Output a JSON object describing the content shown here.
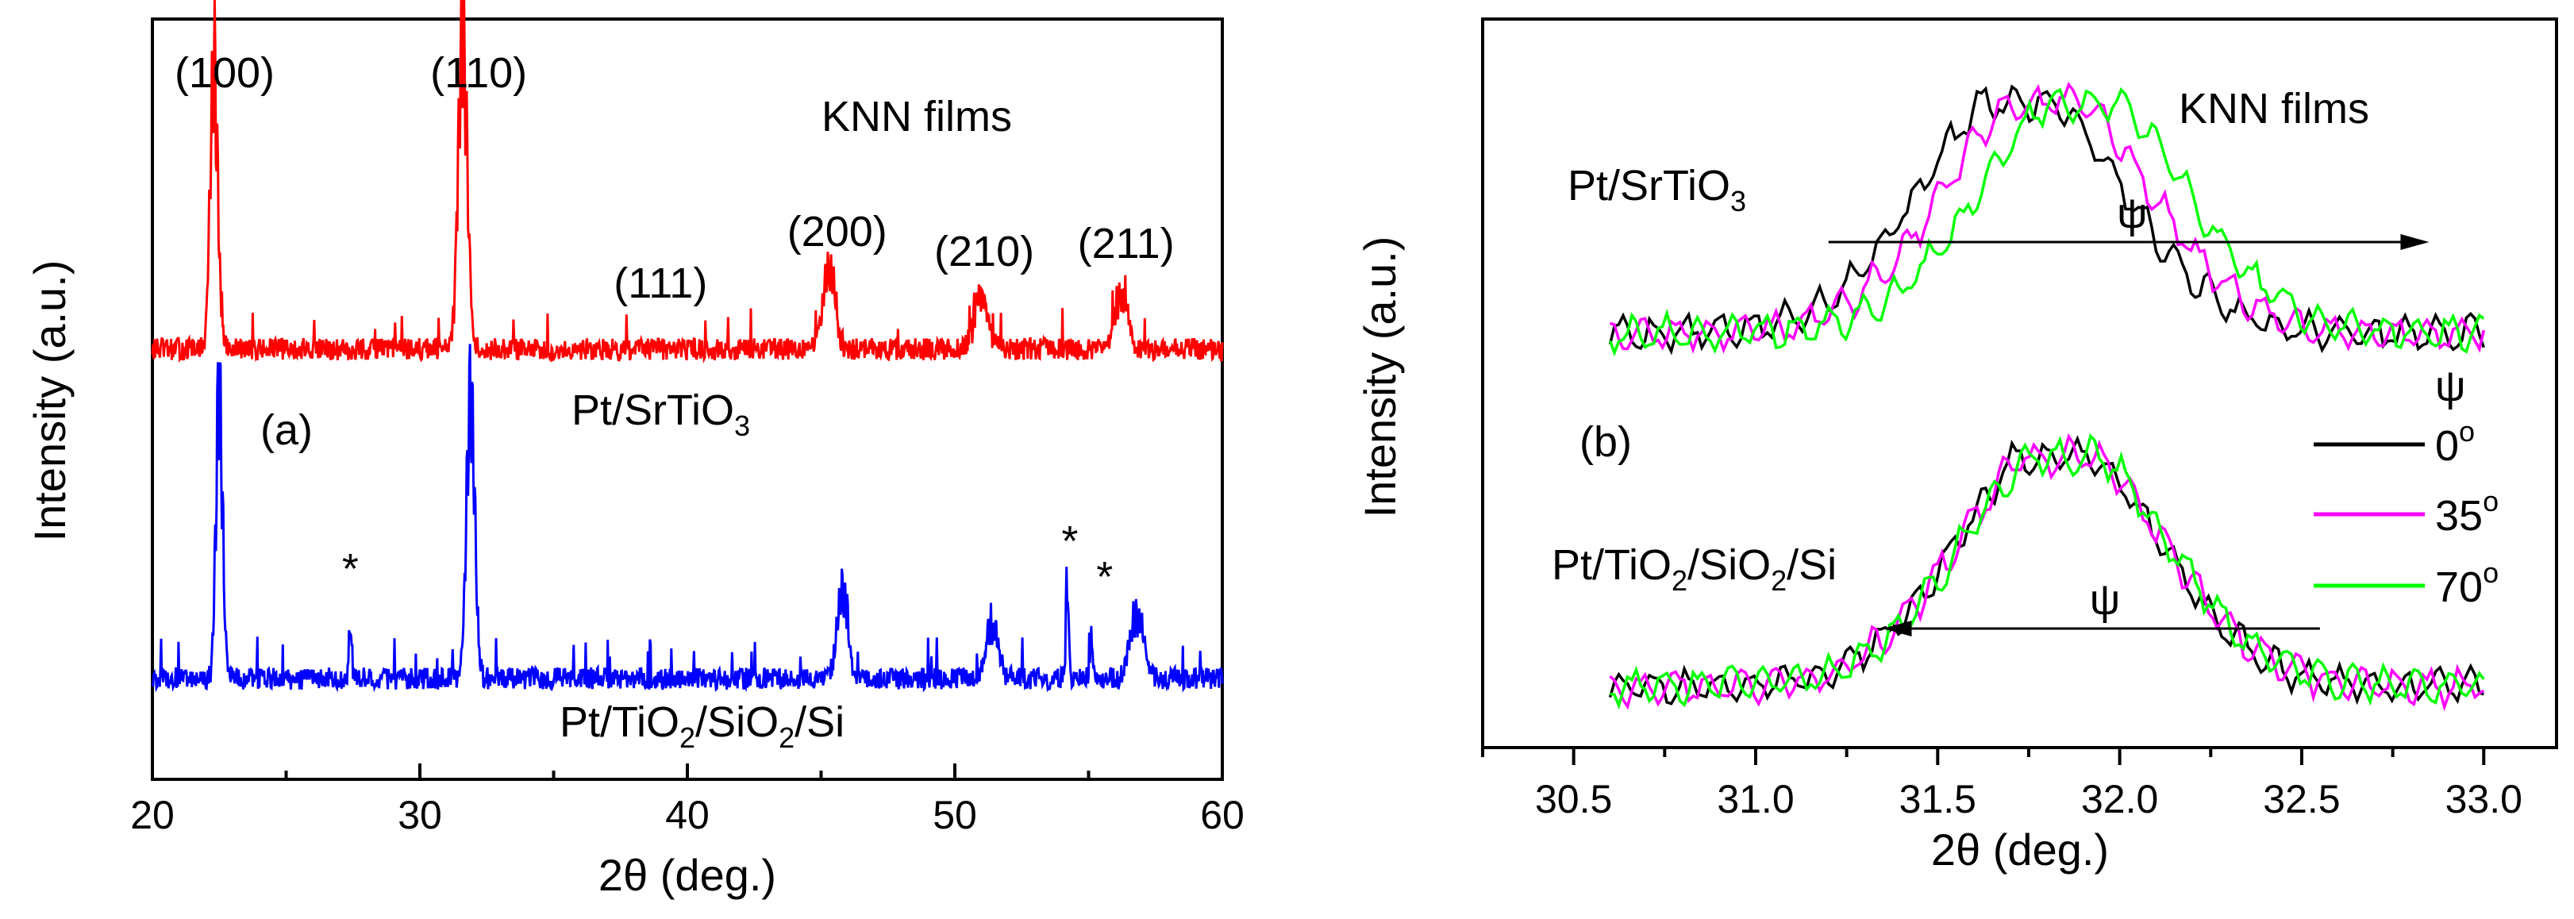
{
  "chart_data": [
    {
      "type": "line",
      "panel_label": "(a)",
      "title_annotation": "KNN films",
      "xlabel": "2θ (deg.)",
      "ylabel": "Intensity (a.u.)",
      "xlim": [
        20,
        60
      ],
      "x_ticks": [
        20,
        30,
        40,
        50,
        60
      ],
      "x_tick_labels": [
        "20",
        "30",
        "40",
        "50",
        "60"
      ],
      "peak_labels": [
        {
          "text": "(100)",
          "x": 22.7
        },
        {
          "text": "(110)",
          "x": 32.2
        },
        {
          "text": "(111)",
          "x": 39.0
        },
        {
          "text": "(200)",
          "x": 45.6
        },
        {
          "text": "(210)",
          "x": 51.1
        },
        {
          "text": "(211)",
          "x": 56.4
        }
      ],
      "asterisks": [
        {
          "text": "*",
          "x": 27.4
        },
        {
          "text": "*",
          "x": 54.3
        },
        {
          "text": "*",
          "x": 55.6
        }
      ],
      "series": [
        {
          "name": "Pt/SrTiO3",
          "label_main": "Pt/SrTiO",
          "label_sub": "3",
          "color": "#ff0000",
          "baseline": 0.0,
          "offset": 1.0,
          "peaks": [
            {
              "x": 22.3,
              "height": 2.3,
              "width": 0.28
            },
            {
              "x": 31.6,
              "height": 2.5,
              "width": 0.33
            },
            {
              "x": 45.3,
              "height": 0.65,
              "width": 0.45
            },
            {
              "x": 51.0,
              "height": 0.45,
              "width": 0.5
            },
            {
              "x": 56.2,
              "height": 0.45,
              "width": 0.5
            }
          ]
        },
        {
          "name": "Pt/TiO2/SiO2/Si",
          "label_parts": [
            "Pt/TiO",
            "2",
            "/SiO",
            "2",
            "/Si"
          ],
          "color": "#0000ff",
          "baseline": 0.0,
          "offset": 0.0,
          "peaks": [
            {
              "x": 22.5,
              "height": 2.3,
              "width": 0.25
            },
            {
              "x": 27.4,
              "height": 0.4,
              "width": 0.12
            },
            {
              "x": 31.9,
              "height": 2.3,
              "width": 0.3
            },
            {
              "x": 45.8,
              "height": 0.7,
              "width": 0.4
            },
            {
              "x": 51.4,
              "height": 0.45,
              "width": 0.45
            },
            {
              "x": 54.2,
              "height": 0.8,
              "width": 0.1
            },
            {
              "x": 55.1,
              "height": 0.3,
              "width": 0.1
            },
            {
              "x": 56.8,
              "height": 0.5,
              "width": 0.5
            }
          ]
        }
      ]
    },
    {
      "type": "line",
      "panel_label": "(b)",
      "title_annotation": "KNN films",
      "xlabel": "2θ (deg.)",
      "ylabel": "Intensity (a.u.)",
      "xlim": [
        30.25,
        33.2
      ],
      "x_ticks": [
        30.5,
        31.0,
        31.5,
        32.0,
        32.5,
        33.0
      ],
      "x_tick_labels": [
        "30.5",
        "31.0",
        "31.5",
        "32.0",
        "32.5",
        "33.0"
      ],
      "legend_title": "ψ",
      "legend": [
        {
          "label": "0",
          "sup": "o",
          "color": "#000000"
        },
        {
          "label": "35",
          "sup": "o",
          "color": "#ff00ff"
        },
        {
          "label": "70",
          "sup": "o",
          "color": "#00ff00"
        }
      ],
      "legend_position": "right",
      "groups": [
        {
          "name": "Pt/SrTiO3",
          "label_main": "Pt/SrTiO",
          "label_sub": "3",
          "arrow_label": "ψ",
          "arrow_direction": "right",
          "arrow_range": [
            31.2,
            32.85
          ],
          "centers": [
            31.73,
            31.8,
            31.9
          ],
          "height": 1.0
        },
        {
          "name": "Pt/TiO2/SiO2/Si",
          "label_parts": [
            "Pt/TiO",
            "2",
            "/SiO",
            "2",
            "/Si"
          ],
          "arrow_label": "ψ",
          "arrow_direction": "left",
          "arrow_range": [
            31.35,
            32.55
          ],
          "centers": [
            31.83,
            31.84,
            31.85
          ],
          "height": 1.0
        }
      ],
      "x_range_data": [
        30.6,
        33.0
      ]
    }
  ]
}
